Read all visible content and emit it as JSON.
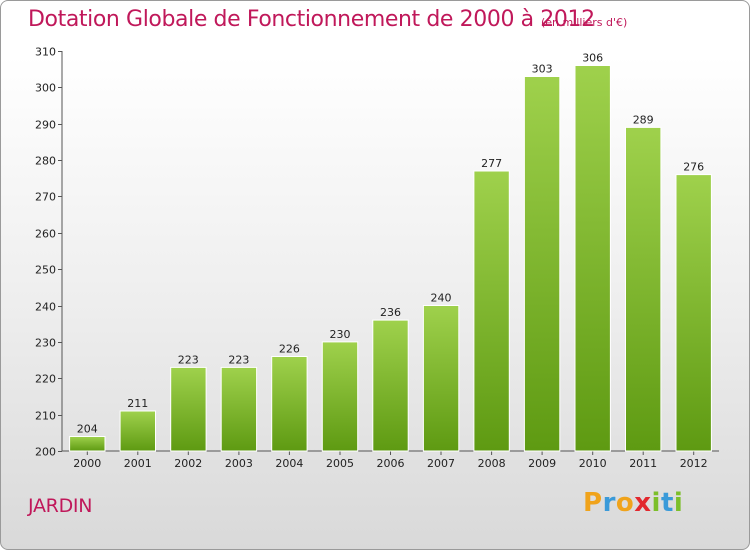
{
  "header": {
    "title": "Dotation Globale de Fonctionnement de 2000 à 2012",
    "subtitle": "(en milliers d'€)"
  },
  "footer": {
    "commune": "JARDIN",
    "logo_letters": [
      {
        "char": "P",
        "color": "#f0a31b"
      },
      {
        "char": "r",
        "color": "#3a9ad9"
      },
      {
        "char": "o",
        "color": "#f0a31b"
      },
      {
        "char": "x",
        "color": "#e2282e"
      },
      {
        "char": "i",
        "color": "#7cbf2a"
      },
      {
        "char": "t",
        "color": "#3a9ad9"
      },
      {
        "char": "i",
        "color": "#7cbf2a"
      }
    ]
  },
  "colors": {
    "accent": "#c0185a",
    "bar_light": "#9fd14c",
    "bar_dark": "#5e9a12"
  },
  "chart_data": {
    "type": "bar",
    "title": "Dotation Globale de Fonctionnement de 2000 à 2012",
    "subtitle": "(en milliers d'€)",
    "categories": [
      "2000",
      "2001",
      "2002",
      "2003",
      "2004",
      "2005",
      "2006",
      "2007",
      "2008",
      "2009",
      "2010",
      "2011",
      "2012"
    ],
    "values": [
      204,
      211,
      223,
      223,
      226,
      230,
      236,
      240,
      277,
      303,
      306,
      289,
      276
    ],
    "ylim": [
      200,
      310
    ],
    "yticks": [
      200,
      210,
      220,
      230,
      240,
      250,
      260,
      270,
      280,
      290,
      300,
      310
    ],
    "grid": false,
    "data_labels": true
  }
}
